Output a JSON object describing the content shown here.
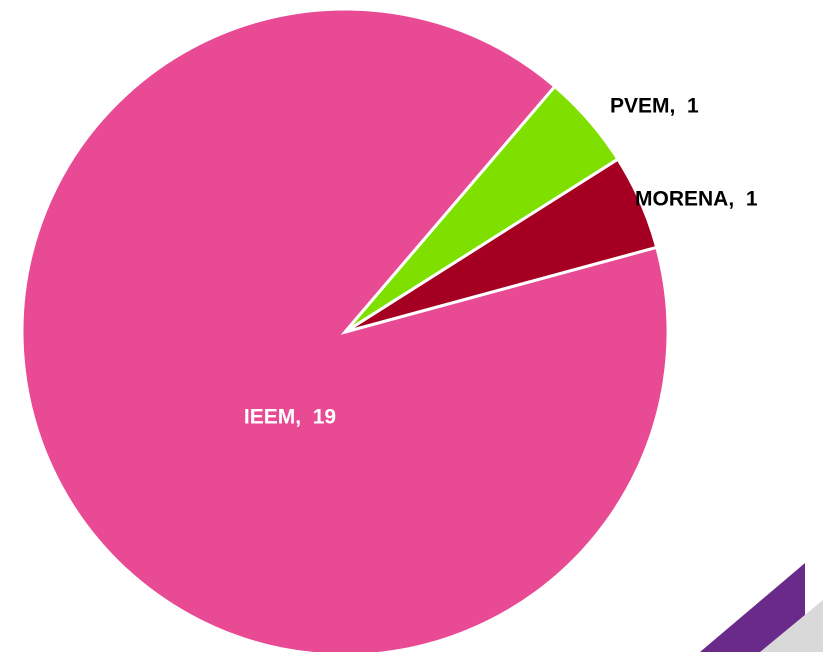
{
  "chart_data": {
    "type": "pie",
    "categories": [
      "IEEM",
      "PVEM",
      "MORENA"
    ],
    "values": [
      19,
      1,
      1
    ],
    "value_labels": [
      "IEEM,  19",
      "PVEM,  1",
      "MORENA,  1"
    ],
    "colors": [
      "#e84a94",
      "#7fe000",
      "#a50021"
    ],
    "label_colors": [
      "#ffffff",
      "#000000",
      "#000000"
    ]
  }
}
